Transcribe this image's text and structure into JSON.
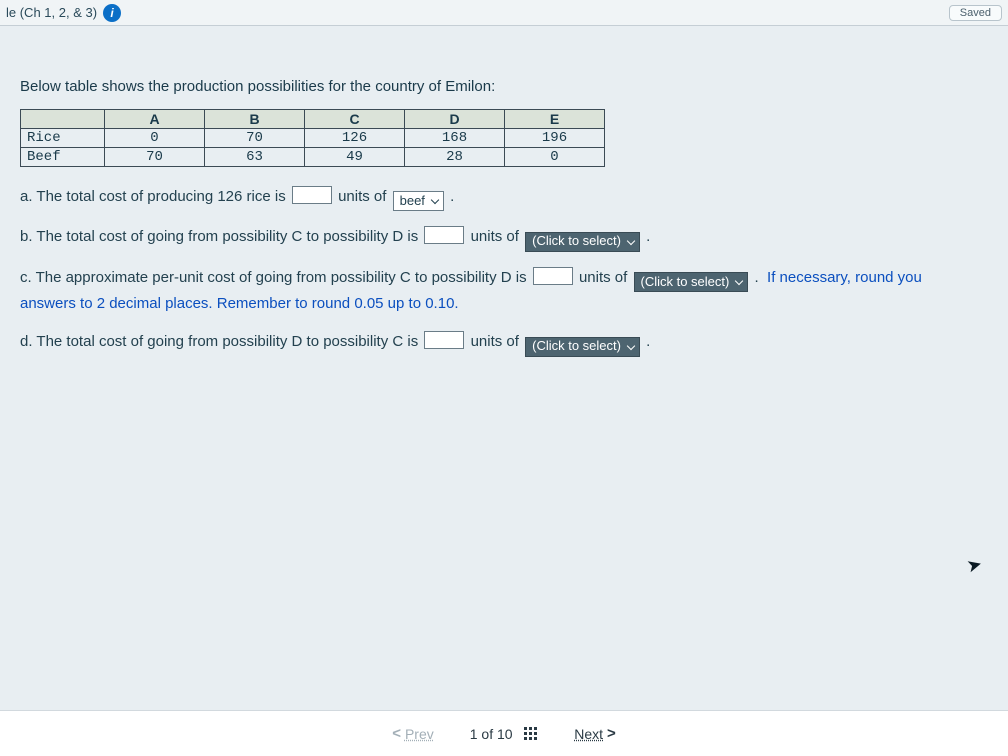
{
  "topbar": {
    "left_text": "le (Ch 1, 2, & 3)",
    "saved_label": "Saved"
  },
  "intro": "Below table shows the production possibilities for the country of Emilon:",
  "table": {
    "columns": [
      "A",
      "B",
      "C",
      "D",
      "E"
    ],
    "rows": [
      {
        "label": "Rice",
        "values": [
          "0",
          "70",
          "126",
          "168",
          "196"
        ]
      },
      {
        "label": "Beef",
        "values": [
          "70",
          "63",
          "49",
          "28",
          "0"
        ]
      }
    ],
    "header_bg": "#dbe3d9",
    "border_color": "#3b4a55",
    "label_col_width": 84,
    "data_col_width": 100,
    "font": "Courier New"
  },
  "questions": {
    "a": {
      "prefix": "a. The total cost of producing 126 rice is",
      "units_word": "units of",
      "select_value": "beef",
      "period": "."
    },
    "b": {
      "prefix": "b. The total cost of going from possibility C to possibility D is",
      "units_word": "units of",
      "select_value": "(Click to select)",
      "period": "."
    },
    "c": {
      "prefix": "c. The approximate per-unit cost of going from possibility C to possibility D is",
      "units_word": "units of",
      "select_value": "(Click to select)",
      "period": ".",
      "hint": "If necessary, round you",
      "hint2": "answers to 2 decimal places. Remember to round 0.05 up to 0.10."
    },
    "d": {
      "prefix": "d. The total cost of going from possibility D to possibility C is",
      "units_word": "units of",
      "select_value": "(Click to select)",
      "period": "."
    }
  },
  "footer": {
    "prev": "Prev",
    "counter": "1 of 10",
    "next": "Next"
  },
  "colors": {
    "page_bg": "#e8eef2",
    "text": "#1a3a4a",
    "hint_blue": "#0b4fbf",
    "select_dark_bg": "#4d6470",
    "info_icon_bg": "#0b6fc7"
  }
}
